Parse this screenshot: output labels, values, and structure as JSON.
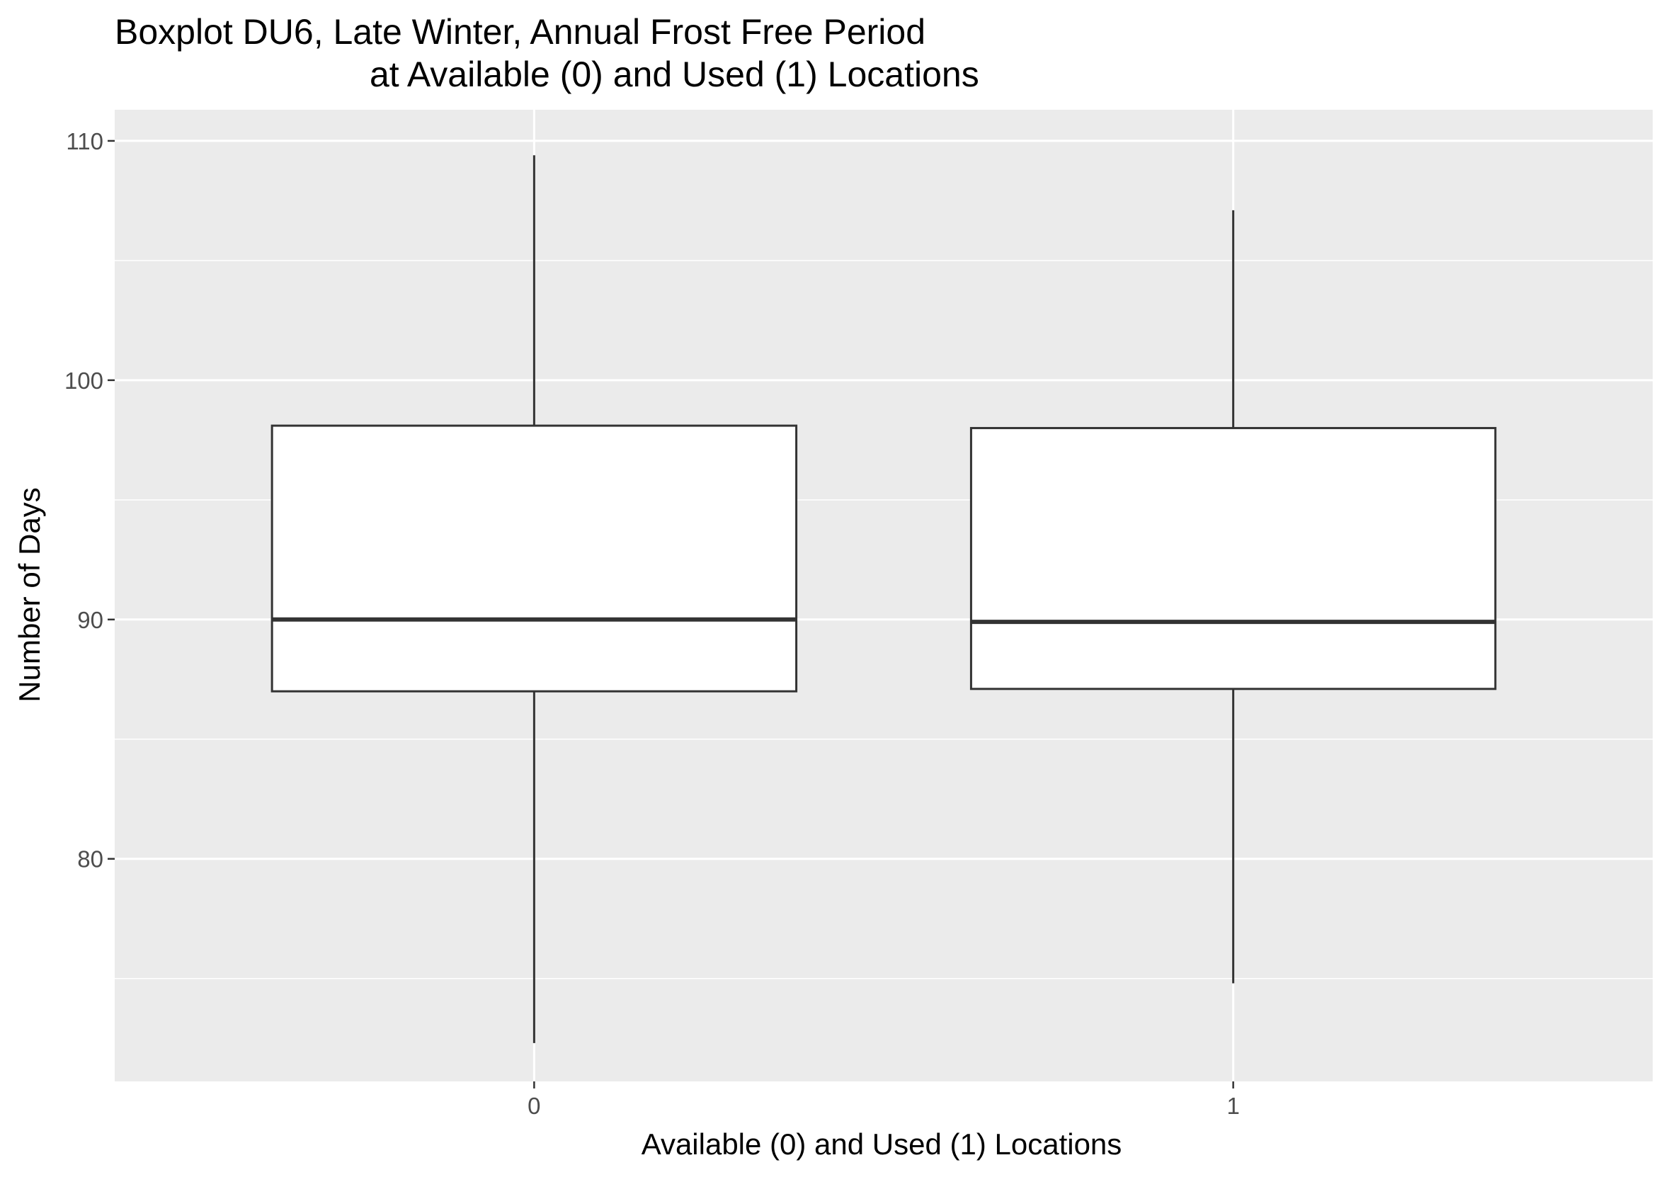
{
  "chart_data": {
    "type": "boxplot",
    "title": "Boxplot DU6, Late Winter, Annual Frost Free Period",
    "subtitle": "at Available (0) and Used (1) Locations",
    "xlabel": "Available (0) and Used (1) Locations",
    "ylabel": "Number of Days",
    "categories": [
      "0",
      "1"
    ],
    "boxes": [
      {
        "category": "0",
        "whisker_low": 72.3,
        "q1": 87.0,
        "median": 90.0,
        "q3": 98.1,
        "whisker_high": 109.4
      },
      {
        "category": "1",
        "whisker_low": 74.8,
        "q1": 87.1,
        "median": 89.9,
        "q3": 98.0,
        "whisker_high": 107.1
      }
    ],
    "yticks": [
      80,
      90,
      100,
      110
    ],
    "ytick_labels": [
      "80",
      "90",
      "100",
      "110"
    ],
    "ylim": [
      70.7,
      111.3
    ],
    "grid": true,
    "colors": {
      "panel_background": "#EBEBEB",
      "grid_major": "#FFFFFF",
      "box_fill": "#FFFFFF",
      "box_stroke": "#333333",
      "tick_label": "#4D4D4D",
      "tick_mark": "#333333",
      "text": "#000000"
    }
  }
}
